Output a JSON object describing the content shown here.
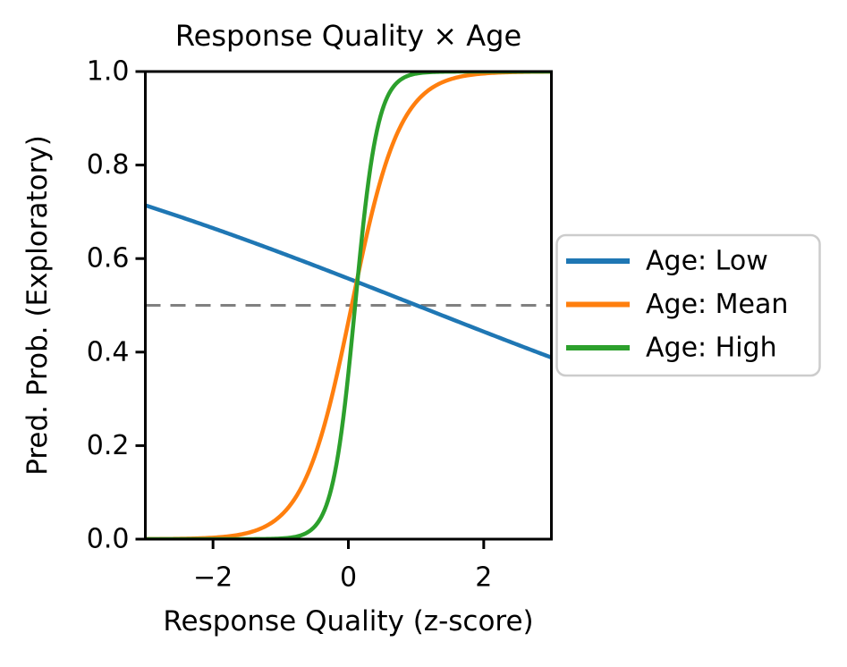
{
  "chart_data": {
    "type": "line",
    "title": "Response Quality × Age",
    "xlabel": "Response Quality (z-score)",
    "ylabel": "Pred. Prob. (Exploratory)",
    "xlim": [
      -3,
      3
    ],
    "ylim": [
      0.0,
      1.0
    ],
    "xticks": [
      -2,
      0,
      2
    ],
    "yticks": [
      0.0,
      0.2,
      0.4,
      0.6,
      0.8,
      1.0
    ],
    "grid": false,
    "background": "#ffffff",
    "axis_color": "#000000",
    "reference_line": {
      "y": 0.5,
      "style": "dashed",
      "color": "#808080"
    },
    "x_samples": [
      -3,
      -2.5,
      -2,
      -1.5,
      -1,
      -0.5,
      0,
      0.5,
      1,
      1.5,
      2,
      2.5,
      3
    ],
    "series": [
      {
        "name": "Age: Low",
        "color": "#1f77b4",
        "model": "logistic",
        "logit_intercept": 0.23,
        "logit_slope": -0.228,
        "values": [
          0.714,
          0.69,
          0.665,
          0.639,
          0.612,
          0.585,
          0.557,
          0.529,
          0.5,
          0.472,
          0.444,
          0.416,
          0.388
        ]
      },
      {
        "name": "Age: Mean",
        "color": "#ff7f0e",
        "model": "logistic",
        "logit_intercept": -0.14,
        "logit_slope": 2.8,
        "values": [
          0.0,
          0.001,
          0.003,
          0.013,
          0.05,
          0.177,
          0.465,
          0.779,
          0.935,
          0.983,
          0.996,
          0.999,
          1.0
        ]
      },
      {
        "name": "Age: High",
        "color": "#2ca02c",
        "model": "logistic",
        "logit_intercept": -0.6,
        "logit_slope": 6.0,
        "values": [
          0.0,
          0.0,
          0.0,
          0.0,
          0.001,
          0.027,
          0.354,
          0.917,
          0.995,
          1.0,
          1.0,
          1.0,
          1.0
        ]
      }
    ],
    "legend": {
      "position": "outside-center-right",
      "border_color": "#cccccc",
      "background": "#ffffff",
      "labels": [
        "Age: Low",
        "Age: Mean",
        "Age: High"
      ]
    }
  }
}
